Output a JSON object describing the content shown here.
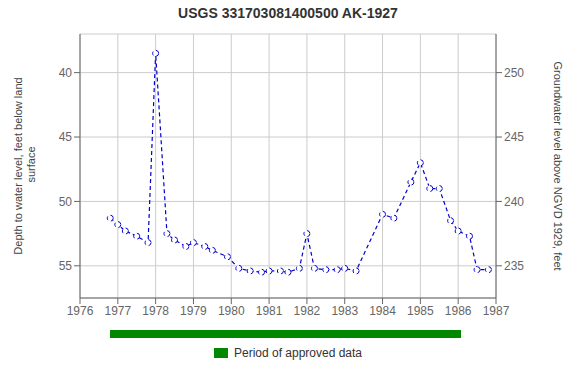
{
  "chart_data": {
    "type": "line",
    "title": "USGS 331703081400500 AK-1927",
    "ylabel": "Depth to water level, feet below land\n surface",
    "y2label": "Groundwater level above NGVD 1929, feet",
    "x": [
      1976.8,
      1977.0,
      1977.2,
      1977.5,
      1977.8,
      1978.0,
      1978.3,
      1978.5,
      1978.8,
      1979.0,
      1979.3,
      1979.5,
      1979.9,
      1980.2,
      1980.5,
      1980.8,
      1981.0,
      1981.3,
      1981.5,
      1981.8,
      1982.0,
      1982.2,
      1982.5,
      1982.8,
      1983.0,
      1983.3,
      1984.0,
      1984.3,
      1984.75,
      1985.0,
      1985.25,
      1985.5,
      1985.8,
      1986.0,
      1986.3,
      1986.5,
      1986.8
    ],
    "values": [
      51.3,
      51.8,
      52.3,
      52.7,
      53.2,
      38.5,
      52.5,
      53.0,
      53.5,
      53.2,
      53.5,
      53.8,
      54.3,
      55.2,
      55.4,
      55.5,
      55.4,
      55.4,
      55.5,
      55.2,
      52.5,
      55.2,
      55.3,
      55.3,
      55.2,
      55.4,
      51.0,
      51.3,
      48.5,
      47.0,
      49.0,
      49.0,
      51.5,
      52.3,
      52.7,
      55.3,
      55.3
    ],
    "color": "#0000cc",
    "marker": "circle",
    "line_style": "dashed",
    "xlim": [
      1976.0,
      1987.0
    ],
    "xticks": [
      1976,
      1977,
      1978,
      1979,
      1980,
      1981,
      1982,
      1983,
      1984,
      1985,
      1986,
      1987
    ],
    "ylim": [
      57.5,
      37.0
    ],
    "yticks": [
      55,
      50,
      45,
      40
    ],
    "y2lim": [
      232.5,
      253.0
    ],
    "y2ticks": [
      235,
      240,
      245,
      250
    ],
    "grid": true,
    "annotations": [
      {
        "text": "Period of approved data",
        "color": "#008800"
      }
    ]
  }
}
